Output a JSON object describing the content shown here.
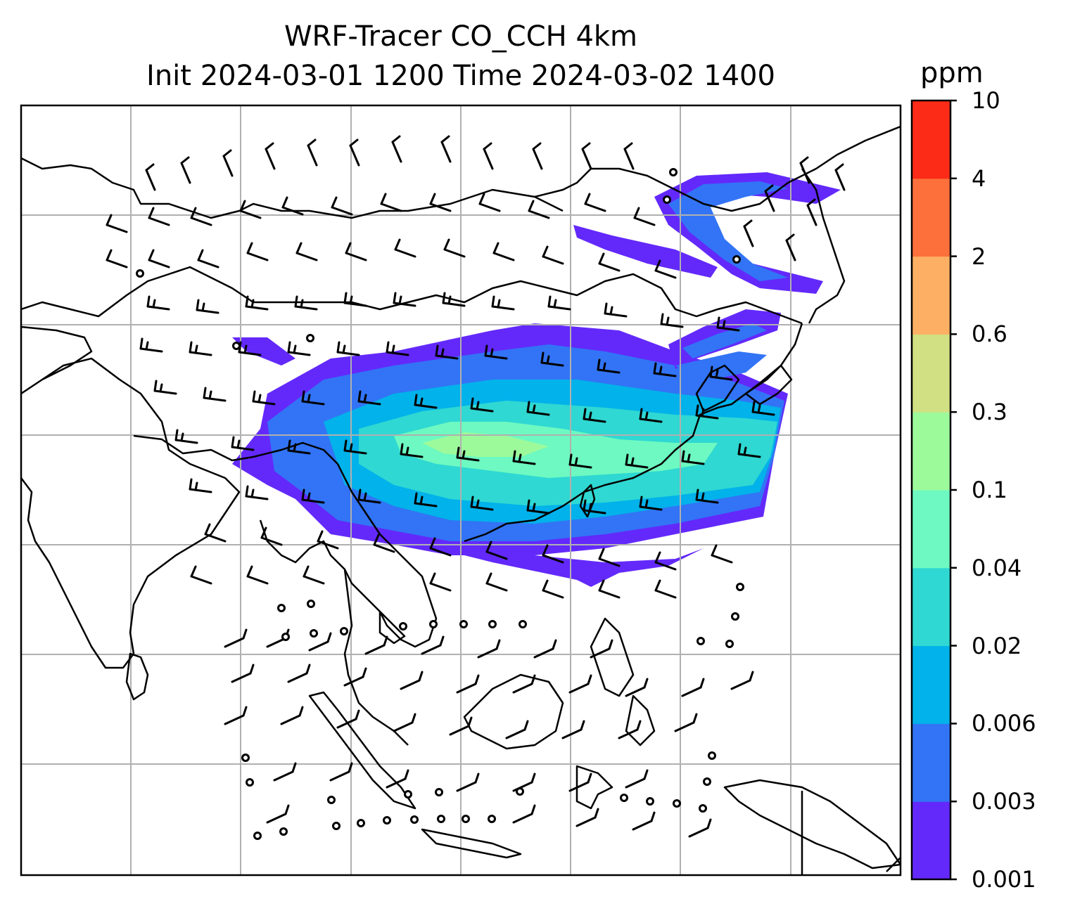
{
  "title": {
    "line1": "WRF-Tracer CO_CCH 4km",
    "line2": "Init 2024-03-01 1200 Time 2024-03-02 1400"
  },
  "colorbar": {
    "unit": "ppm",
    "levels": [
      "0.001",
      "0.003",
      "0.006",
      "0.02",
      "0.04",
      "0.1",
      "0.3",
      "0.6",
      "2",
      "4",
      "10"
    ],
    "colors": [
      "#6329fb",
      "#3274f5",
      "#02b2ea",
      "#2fd8d2",
      "#6df9c1",
      "#9dfa9b",
      "#d0e082",
      "#fdb064",
      "#fd703c",
      "#fb2b17"
    ]
  },
  "map": {
    "coastline_color": "#000000",
    "grid_color": "#b0b0b0",
    "wind_barb_color": "#000000",
    "background": "#ffffff"
  }
}
